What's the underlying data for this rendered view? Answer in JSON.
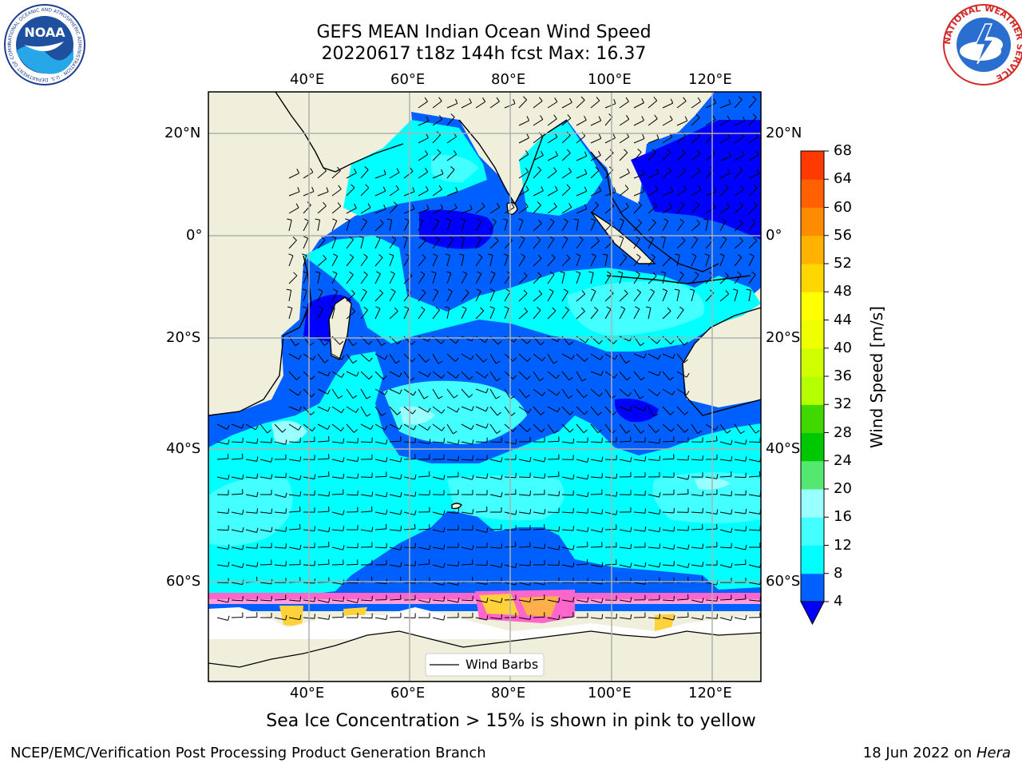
{
  "header": {
    "title_line1": "GEFS MEAN Indian Ocean Wind Speed",
    "title_line2": "20220617 t18z 144h fcst   Max: 16.37"
  },
  "logos": {
    "left": {
      "name": "noaa-logo",
      "text": "NOAA",
      "ring_text": "NATIONAL OCEANIC AND ATMOSPHERIC ADMINISTRATION · U.S. DEPARTMENT OF COMMERCE"
    },
    "right": {
      "name": "nws-logo",
      "ring_text": "NATIONAL WEATHER SERVICE"
    }
  },
  "map": {
    "lon_ticks": [
      "40°E",
      "60°E",
      "80°E",
      "100°E",
      "120°E"
    ],
    "lat_ticks": [
      "20°N",
      "0°",
      "20°S",
      "40°S",
      "60°S"
    ],
    "legend_label": "Wind Barbs"
  },
  "colorbar": {
    "label": "Wind Speed [m/s]",
    "ticks": [
      "4",
      "8",
      "12",
      "16",
      "20",
      "24",
      "28",
      "32",
      "36",
      "40",
      "44",
      "48",
      "52",
      "56",
      "60",
      "64",
      "68"
    ],
    "colors": [
      "#0060ff",
      "#00ffff",
      "#44ffff",
      "#99ffff",
      "#55e870",
      "#00c800",
      "#40d800",
      "#b4ff00",
      "#d0ff00",
      "#f0ff00",
      "#ffff00",
      "#ffd700",
      "#ffb300",
      "#ff8c00",
      "#ff6000",
      "#ff3a00",
      "#ff0000"
    ],
    "under_color": "#0000ff"
  },
  "footer": {
    "caption": "Sea Ice Concentration > 15% is shown in pink to yellow",
    "left": "NCEP/EMC/Verification Post Processing Product Generation Branch",
    "date": "18 Jun 2022 on ",
    "host": "Hera"
  },
  "palette": {
    "land": "#efefdc",
    "ocean_4_8": "#0060ff",
    "ocean_8_12": "#00ffff",
    "ocean_12_16": "#44ffff",
    "ocean_16_20": "#99ffff",
    "ice_pink": "#ff66cc",
    "ice_yellow": "#ffd23c"
  }
}
